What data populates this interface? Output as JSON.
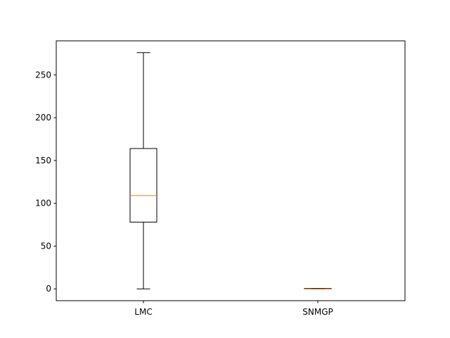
{
  "chart_data": {
    "type": "box",
    "title": "",
    "xlabel": "",
    "ylabel": "",
    "categories": [
      "LMC",
      "SNMGP"
    ],
    "ylim": [
      -13.8,
      289.8
    ],
    "yticks": [
      0,
      50,
      100,
      150,
      200,
      250
    ],
    "boxes": [
      {
        "label": "LMC",
        "whisker_low": 0,
        "q1": 78,
        "median": 109,
        "q3": 164,
        "whisker_high": 276
      },
      {
        "label": "SNMGP",
        "whisker_low": 0,
        "q1": 0,
        "median": 0,
        "q3": 0.5,
        "whisker_high": 0.5
      }
    ],
    "grid": false,
    "colors": {
      "box": "#000000",
      "median": "#ff7f0e",
      "background": "#ffffff"
    }
  }
}
